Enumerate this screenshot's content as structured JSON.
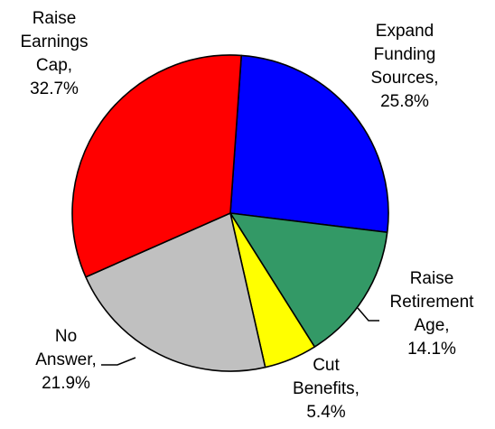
{
  "chart_data": {
    "type": "pie",
    "title": "",
    "start_angle_deg": 86,
    "direction": "clockwise",
    "slices": [
      {
        "label_lines": [
          "Expand",
          "Funding",
          "Sources,",
          "25.8%"
        ],
        "category": "Expand Funding Sources",
        "value": 25.8,
        "color": "#0000ff"
      },
      {
        "label_lines": [
          "Raise",
          "Retirement",
          "Age,",
          "14.1%"
        ],
        "category": "Raise Retirement Age",
        "value": 14.1,
        "color": "#339966"
      },
      {
        "label_lines": [
          "Cut",
          "Benefits,",
          "5.4%"
        ],
        "category": "Cut Benefits",
        "value": 5.4,
        "color": "#ffff00"
      },
      {
        "label_lines": [
          "No",
          "Answer,",
          "21.9%"
        ],
        "category": "No Answer",
        "value": 21.9,
        "color": "#c0c0c0"
      },
      {
        "label_lines": [
          "Raise",
          "Earnings",
          "Cap,",
          "32.7%"
        ],
        "category": "Raise Earnings Cap",
        "value": 32.7,
        "color": "#ff0000"
      }
    ]
  }
}
